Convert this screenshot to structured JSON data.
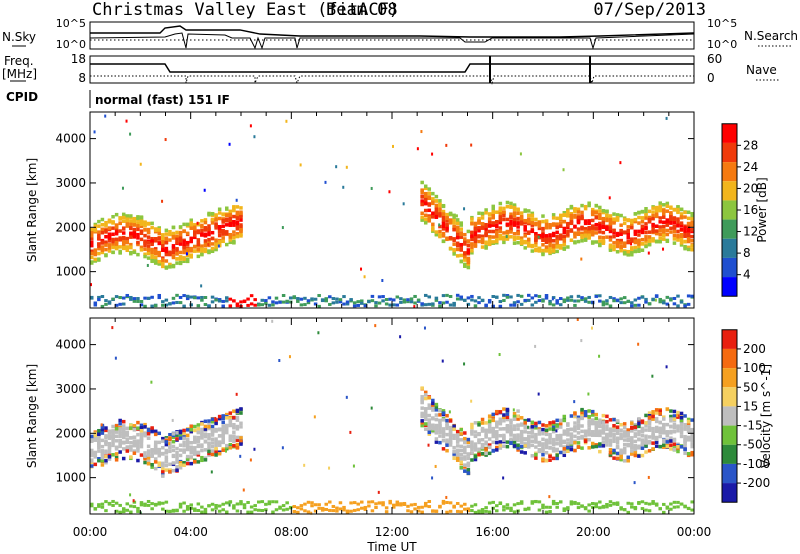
{
  "header": {
    "title": "Christmas Valley East (fitACF)",
    "beam": "Beam 08",
    "date": "07/Sep/2013"
  },
  "sky_panel": {
    "left_label": "N.Sky",
    "left_ticks": [
      "10^5",
      "10^0"
    ],
    "right_ticks": [
      "10^5",
      "10^0"
    ],
    "right_label": "N.Search"
  },
  "freq_panel": {
    "left_label_1": "Freq.",
    "left_label_2": "[MHz]",
    "left_ticks": [
      "18",
      "8"
    ],
    "right_ticks": [
      "60",
      "0"
    ],
    "right_label": "Nave"
  },
  "cpid": {
    "label": "CPID",
    "value": "normal (fast) 151 IF"
  },
  "chart_data": [
    {
      "type": "heatmap",
      "name": "power",
      "ylabel": "Slant Range [km]",
      "yticks": [
        "1000",
        "2000",
        "3000",
        "4000"
      ],
      "ylim": [
        180,
        4600
      ],
      "xlim": [
        0,
        24
      ],
      "colorbar_label": "Power [dB]",
      "colorbar_ticks": [
        "4",
        "8",
        "12",
        "16",
        "20",
        "24",
        "28"
      ],
      "colorbar_colors": [
        "#0000ff",
        "#1f4fd0",
        "#2a7a9a",
        "#3f9b5a",
        "#8cc63f",
        "#f2b51c",
        "#f57a10",
        "#f03a0a",
        "#ff0000"
      ]
    },
    {
      "type": "heatmap",
      "name": "velocity",
      "ylabel": "Slant Range [km]",
      "yticks": [
        "1000",
        "2000",
        "3000",
        "4000"
      ],
      "ylim": [
        180,
        4600
      ],
      "xlim": [
        0,
        24
      ],
      "xticks": [
        "00:00",
        "04:00",
        "08:00",
        "12:00",
        "16:00",
        "20:00",
        "00:00"
      ],
      "xlabel": "Time UT",
      "colorbar_label": "Velocity [m s^-1]",
      "colorbar_ticks": [
        "200",
        "100",
        "50",
        "15",
        "-15",
        "-50",
        "-100",
        "-200"
      ],
      "colorbar_colors": [
        "#1a1aa8",
        "#2a55c8",
        "#2d8a3a",
        "#6fc23a",
        "#bebebe",
        "#f5d060",
        "#f5a020",
        "#f56a10",
        "#e82010"
      ]
    }
  ]
}
